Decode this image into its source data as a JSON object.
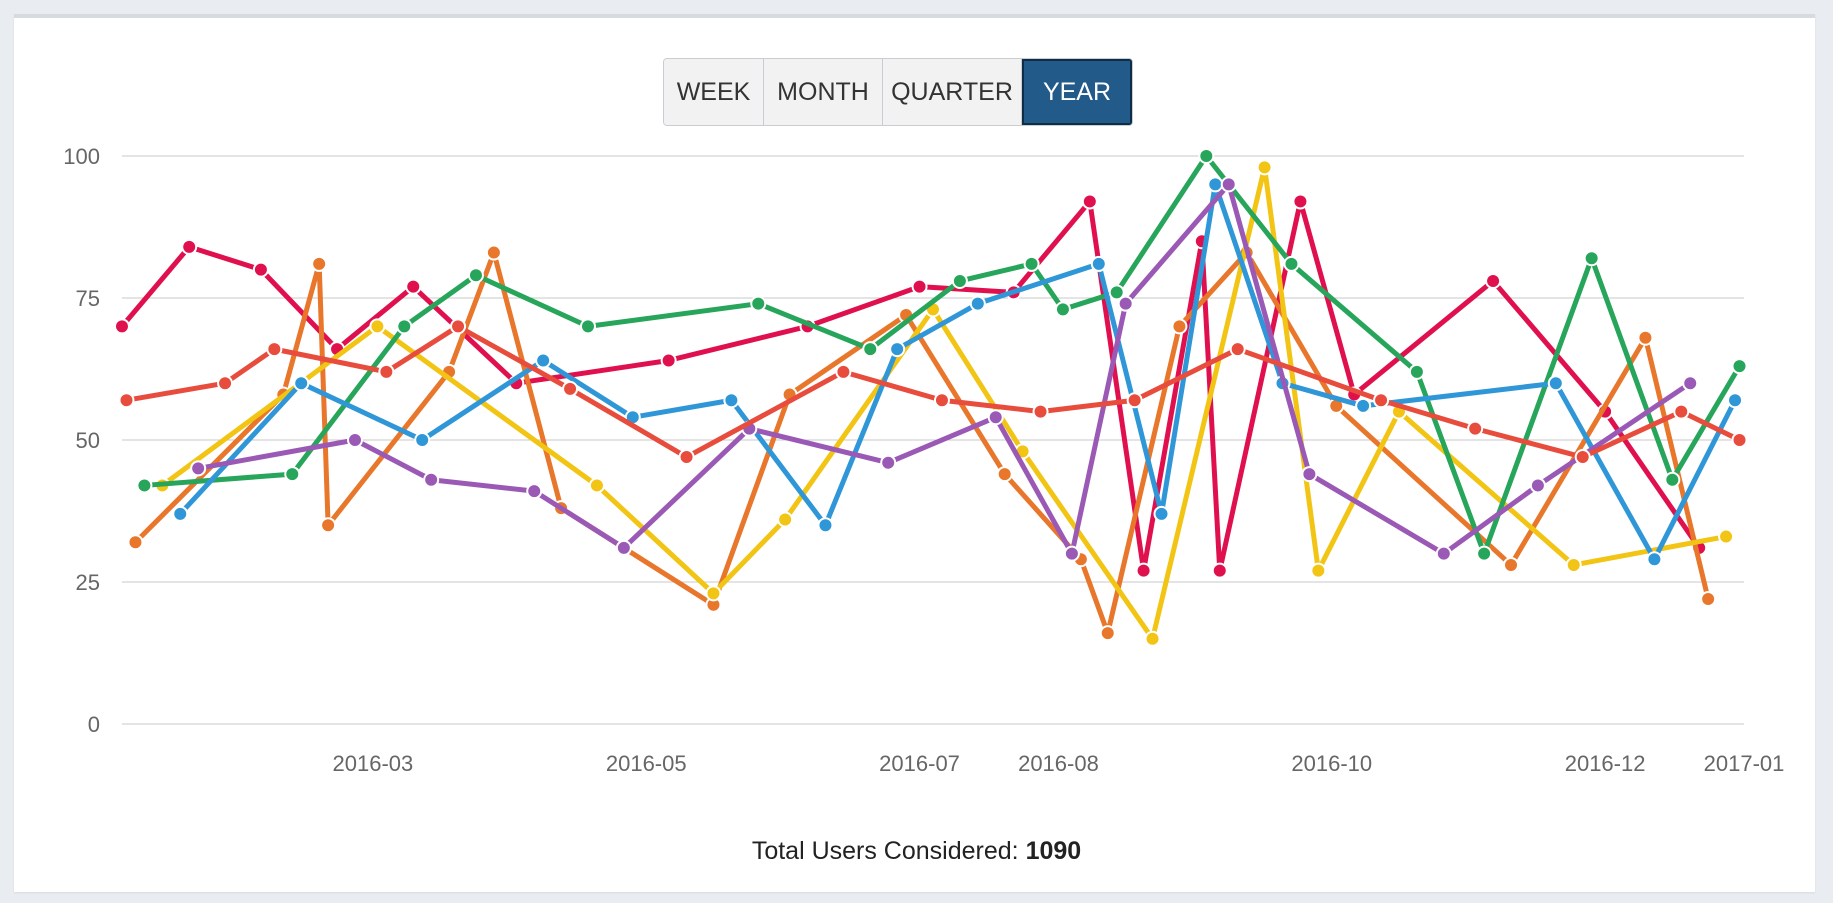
{
  "range_buttons": [
    {
      "label": "WEEK",
      "active": false
    },
    {
      "label": "MONTH",
      "active": false
    },
    {
      "label": "QUARTER",
      "active": false
    },
    {
      "label": "YEAR",
      "active": true
    }
  ],
  "footer": {
    "total_label": "Total Users Considered:",
    "total_value": "1090"
  },
  "colors": {
    "series": [
      "#e0104f",
      "#e8762b",
      "#f2c414",
      "#27a55a",
      "#2f97d7",
      "#9b59b6",
      "#e74c3c"
    ],
    "active_button": "#225a8a",
    "gridline": "#c8c8c8",
    "tick_text": "#666666"
  },
  "chart_data": {
    "type": "line",
    "title": "",
    "xlabel": "",
    "ylabel": "",
    "ylim": [
      0,
      100
    ],
    "yticks": [
      0,
      25,
      50,
      75,
      100
    ],
    "xlim": [
      "2016-01-05",
      "2017-01-01"
    ],
    "xticks": [
      "2016-03",
      "2016-05",
      "2016-07",
      "2016-08",
      "2016-10",
      "2016-12",
      "2017-01"
    ],
    "marker": "circle",
    "grid": true,
    "legend": "none",
    "series": [
      {
        "color": "#e0104f",
        "points": [
          [
            "2016-01-05",
            70
          ],
          [
            "2016-01-20",
            84
          ],
          [
            "2016-02-05",
            80
          ],
          [
            "2016-02-22",
            66
          ],
          [
            "2016-03-10",
            77
          ],
          [
            "2016-04-02",
            60
          ],
          [
            "2016-05-06",
            64
          ],
          [
            "2016-06-06",
            70
          ],
          [
            "2016-07-01",
            77
          ],
          [
            "2016-07-22",
            76
          ],
          [
            "2016-08-08",
            92
          ],
          [
            "2016-08-20",
            27
          ],
          [
            "2016-09-02",
            85
          ],
          [
            "2016-09-06",
            27
          ],
          [
            "2016-09-24",
            92
          ],
          [
            "2016-10-06",
            58
          ],
          [
            "2016-11-06",
            78
          ],
          [
            "2016-12-01",
            55
          ],
          [
            "2016-12-22",
            31
          ]
        ]
      },
      {
        "color": "#e8762b",
        "points": [
          [
            "2016-01-08",
            32
          ],
          [
            "2016-02-10",
            58
          ],
          [
            "2016-02-18",
            81
          ],
          [
            "2016-02-20",
            35
          ],
          [
            "2016-03-18",
            62
          ],
          [
            "2016-03-28",
            83
          ],
          [
            "2016-04-12",
            38
          ],
          [
            "2016-05-16",
            21
          ],
          [
            "2016-06-02",
            58
          ],
          [
            "2016-06-28",
            72
          ],
          [
            "2016-07-20",
            44
          ],
          [
            "2016-08-06",
            29
          ],
          [
            "2016-08-12",
            16
          ],
          [
            "2016-08-28",
            70
          ],
          [
            "2016-09-12",
            83
          ],
          [
            "2016-10-02",
            56
          ],
          [
            "2016-11-10",
            28
          ],
          [
            "2016-12-10",
            68
          ],
          [
            "2016-12-24",
            22
          ]
        ]
      },
      {
        "color": "#f2c414",
        "points": [
          [
            "2016-01-14",
            42
          ],
          [
            "2016-03-02",
            70
          ],
          [
            "2016-04-20",
            42
          ],
          [
            "2016-05-16",
            23
          ],
          [
            "2016-06-01",
            36
          ],
          [
            "2016-07-04",
            73
          ],
          [
            "2016-07-24",
            48
          ],
          [
            "2016-08-22",
            15
          ],
          [
            "2016-09-16",
            98
          ],
          [
            "2016-09-28",
            27
          ],
          [
            "2016-10-16",
            55
          ],
          [
            "2016-11-24",
            28
          ],
          [
            "2016-12-28",
            33
          ]
        ]
      },
      {
        "color": "#27a55a",
        "points": [
          [
            "2016-01-10",
            42
          ],
          [
            "2016-02-12",
            44
          ],
          [
            "2016-03-08",
            70
          ],
          [
            "2016-03-24",
            79
          ],
          [
            "2016-04-18",
            70
          ],
          [
            "2016-05-26",
            74
          ],
          [
            "2016-06-20",
            66
          ],
          [
            "2016-07-10",
            78
          ],
          [
            "2016-07-26",
            81
          ],
          [
            "2016-08-02",
            73
          ],
          [
            "2016-08-14",
            76
          ],
          [
            "2016-09-03",
            100
          ],
          [
            "2016-09-22",
            81
          ],
          [
            "2016-10-20",
            62
          ],
          [
            "2016-11-04",
            30
          ],
          [
            "2016-11-28",
            82
          ],
          [
            "2016-12-16",
            43
          ],
          [
            "2016-12-31",
            63
          ]
        ]
      },
      {
        "color": "#2f97d7",
        "points": [
          [
            "2016-01-18",
            37
          ],
          [
            "2016-02-14",
            60
          ],
          [
            "2016-03-12",
            50
          ],
          [
            "2016-04-08",
            64
          ],
          [
            "2016-04-28",
            54
          ],
          [
            "2016-05-20",
            57
          ],
          [
            "2016-06-10",
            35
          ],
          [
            "2016-06-26",
            66
          ],
          [
            "2016-07-14",
            74
          ],
          [
            "2016-08-10",
            81
          ],
          [
            "2016-08-24",
            37
          ],
          [
            "2016-09-05",
            95
          ],
          [
            "2016-09-20",
            60
          ],
          [
            "2016-10-08",
            56
          ],
          [
            "2016-11-20",
            60
          ],
          [
            "2016-12-12",
            29
          ],
          [
            "2016-12-30",
            57
          ]
        ]
      },
      {
        "color": "#9b59b6",
        "points": [
          [
            "2016-01-22",
            45
          ],
          [
            "2016-02-26",
            50
          ],
          [
            "2016-03-14",
            43
          ],
          [
            "2016-04-06",
            41
          ],
          [
            "2016-04-26",
            31
          ],
          [
            "2016-05-24",
            52
          ],
          [
            "2016-06-24",
            46
          ],
          [
            "2016-07-18",
            54
          ],
          [
            "2016-08-04",
            30
          ],
          [
            "2016-08-16",
            74
          ],
          [
            "2016-09-08",
            95
          ],
          [
            "2016-09-26",
            44
          ],
          [
            "2016-10-26",
            30
          ],
          [
            "2016-11-16",
            42
          ],
          [
            "2016-12-20",
            60
          ]
        ]
      },
      {
        "color": "#e74c3c",
        "points": [
          [
            "2016-01-06",
            57
          ],
          [
            "2016-01-28",
            60
          ],
          [
            "2016-02-08",
            66
          ],
          [
            "2016-03-04",
            62
          ],
          [
            "2016-03-20",
            70
          ],
          [
            "2016-04-14",
            59
          ],
          [
            "2016-05-10",
            47
          ],
          [
            "2016-06-14",
            62
          ],
          [
            "2016-07-06",
            57
          ],
          [
            "2016-07-28",
            55
          ],
          [
            "2016-08-18",
            57
          ],
          [
            "2016-09-10",
            66
          ],
          [
            "2016-10-12",
            57
          ],
          [
            "2016-11-02",
            52
          ],
          [
            "2016-11-26",
            47
          ],
          [
            "2016-12-18",
            55
          ],
          [
            "2016-12-31",
            50
          ]
        ]
      }
    ]
  }
}
